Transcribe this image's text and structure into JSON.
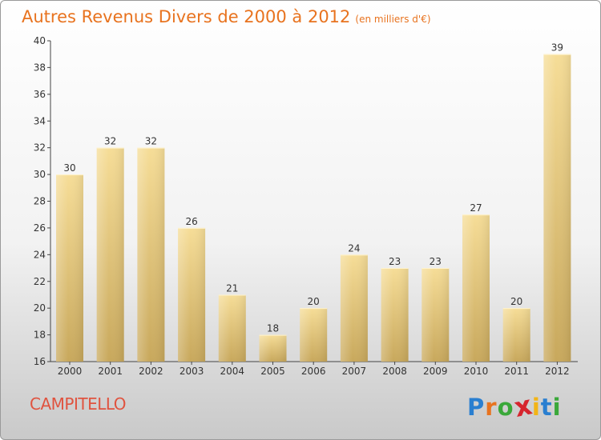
{
  "chart_data": {
    "type": "bar",
    "title": "Autres Revenus Divers de 2000 à 2012",
    "unit": "(en milliers d'€)",
    "categories": [
      "2000",
      "2001",
      "2002",
      "2003",
      "2004",
      "2005",
      "2006",
      "2007",
      "2008",
      "2009",
      "2010",
      "2011",
      "2012"
    ],
    "values": [
      30,
      32,
      32,
      26,
      21,
      18,
      20,
      24,
      23,
      23,
      27,
      20,
      39
    ],
    "ylim": [
      16,
      40
    ],
    "yticks": [
      16,
      18,
      20,
      22,
      24,
      26,
      28,
      30,
      32,
      34,
      36,
      38,
      40
    ],
    "grid": false,
    "bar_color": "#f0d590",
    "title_color": "#e8731f"
  },
  "location": "CAMPITELLO",
  "logo": {
    "letters": [
      "P",
      "r",
      "o",
      "x",
      "i",
      "t",
      "i"
    ],
    "colors": [
      "#2a7fd0",
      "#e8731f",
      "#3aa83a",
      "#d6252e",
      "#f2b416",
      "#2a7fd0",
      "#3aa83a"
    ]
  }
}
